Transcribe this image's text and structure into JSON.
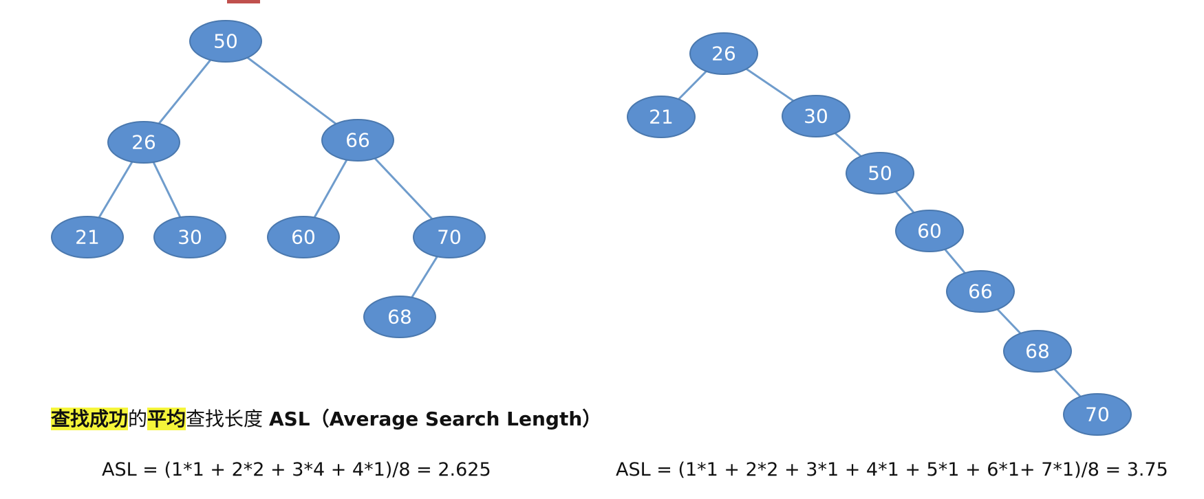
{
  "colors": {
    "node_fill": "#5b8fcf",
    "node_border": "#4a78ae",
    "edge": "#6f9ccc",
    "highlight": "#f5f53a",
    "top_mark": "#c0504d"
  },
  "balanced_tree": {
    "nodes": [
      "50",
      "26",
      "66",
      "21",
      "30",
      "60",
      "70",
      "68"
    ],
    "edges": [
      [
        "50",
        "26"
      ],
      [
        "50",
        "66"
      ],
      [
        "26",
        "21"
      ],
      [
        "26",
        "30"
      ],
      [
        "66",
        "60"
      ],
      [
        "66",
        "70"
      ],
      [
        "70",
        "68"
      ]
    ]
  },
  "skewed_tree": {
    "nodes": [
      "26",
      "21",
      "30",
      "50",
      "60",
      "66",
      "68",
      "70"
    ],
    "edges": [
      [
        "26",
        "21"
      ],
      [
        "26",
        "30"
      ],
      [
        "30",
        "50"
      ],
      [
        "50",
        "60"
      ],
      [
        "60",
        "66"
      ],
      [
        "66",
        "68"
      ],
      [
        "68",
        "70"
      ]
    ]
  },
  "heading": {
    "part1": "查找成功",
    "part2": "的",
    "part3": "平均",
    "part4": "查找长度 ",
    "part5": "ASL（Average Search Length）"
  },
  "formulas": {
    "left": "ASL = (1*1 + 2*2 + 3*4 + 4*1)/8 = 2.625",
    "right": "ASL = (1*1 + 2*2 + 3*1 + 4*1 + 5*1 + 6*1+  7*1)/8 = 3.75"
  }
}
